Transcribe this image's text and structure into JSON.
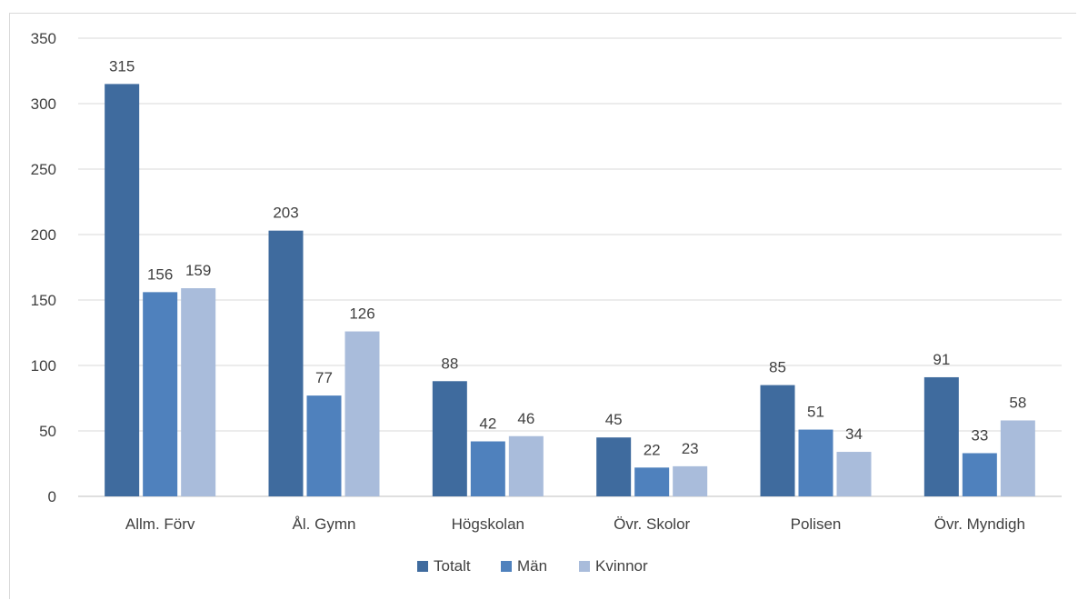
{
  "chart_data": {
    "type": "bar",
    "title": "",
    "xlabel": "",
    "ylabel": "",
    "ylim": [
      0,
      350
    ],
    "yticks": [
      0,
      50,
      100,
      150,
      200,
      250,
      300,
      350
    ],
    "grid": true,
    "legend_position": "bottom",
    "categories": [
      "Allm. Förv",
      "Ål. Gymn",
      "Högskolan",
      "Övr. Skolor",
      "Polisen",
      "Övr. Myndigh"
    ],
    "series": [
      {
        "name": "Totalt",
        "color": "#3f6b9e",
        "values": [
          315,
          203,
          88,
          45,
          85,
          91
        ]
      },
      {
        "name": "Män",
        "color": "#4f81bd",
        "values": [
          156,
          77,
          42,
          22,
          51,
          33
        ]
      },
      {
        "name": "Kvinnor",
        "color": "#a9bcdb",
        "values": [
          159,
          126,
          46,
          23,
          34,
          58
        ]
      }
    ]
  }
}
